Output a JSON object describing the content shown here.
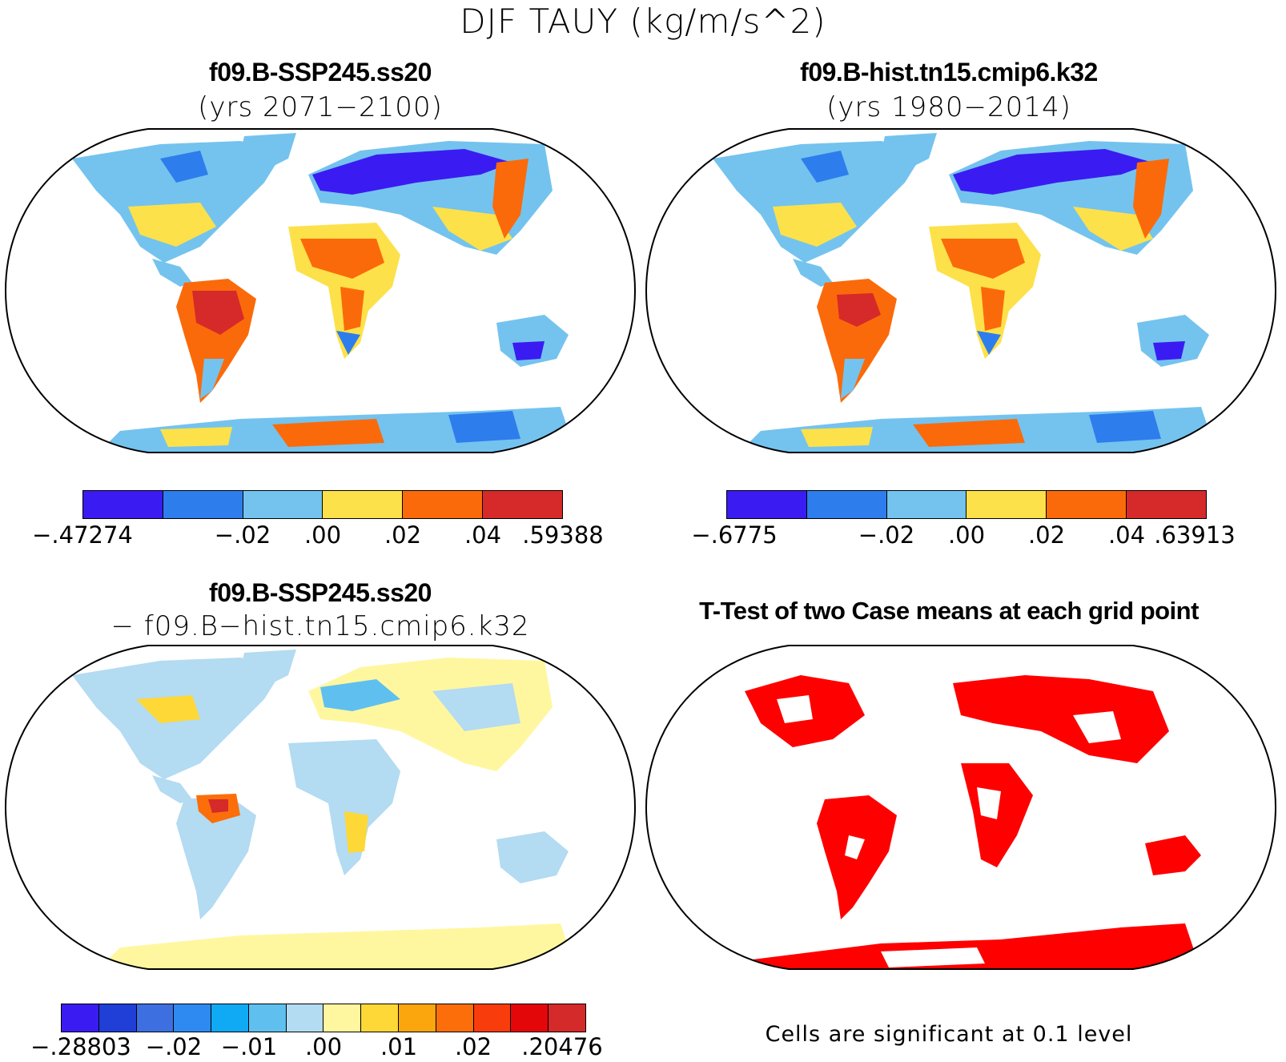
{
  "title": "DJF TAUY (kg/m/s^2)",
  "panels": {
    "top_left": {
      "title": "f09.B-SSP245.ss20",
      "subtitle": "(yrs 2071−2100)",
      "colorbar": {
        "colors": [
          "#3a1cf2",
          "#2e7ded",
          "#74c3ee",
          "#fde14a",
          "#fb6a0a",
          "#d62a2a"
        ],
        "tick_labels": [
          "−.47274",
          "−.02",
          ".00",
          ".02",
          ".04",
          ".59388"
        ]
      }
    },
    "top_right": {
      "title": "f09.B-hist.tn15.cmip6.k32",
      "subtitle": "(yrs 1980−2014)",
      "colorbar": {
        "colors": [
          "#3a1cf2",
          "#2e7ded",
          "#74c3ee",
          "#fde14a",
          "#fb6a0a",
          "#d62a2a"
        ],
        "tick_labels": [
          "−.6775",
          "−.02",
          ".00",
          ".02",
          ".04",
          ".63913"
        ]
      }
    },
    "bottom_left": {
      "title": "f09.B-SSP245.ss20",
      "subtitle": "− f09.B−hist.tn15.cmip6.k32",
      "colorbar": {
        "colors": [
          "#3a1cf2",
          "#1f3fd6",
          "#3d6fe0",
          "#2e89f0",
          "#10aaf4",
          "#5fc0ef",
          "#b3dbf2",
          "#fff7a0",
          "#fdd836",
          "#fca60d",
          "#fb6e0a",
          "#f93c0c",
          "#e3070a",
          "#d42a2a"
        ],
        "tick_labels": [
          "−.28803",
          "−.02",
          "−.01",
          ".00",
          ".01",
          ".02",
          ".20476"
        ]
      }
    },
    "bottom_right": {
      "title": "T-Test of two Case means at each grid point",
      "note": "Cells are significant at 0.1 level",
      "significance_color": "#ff0000"
    }
  }
}
